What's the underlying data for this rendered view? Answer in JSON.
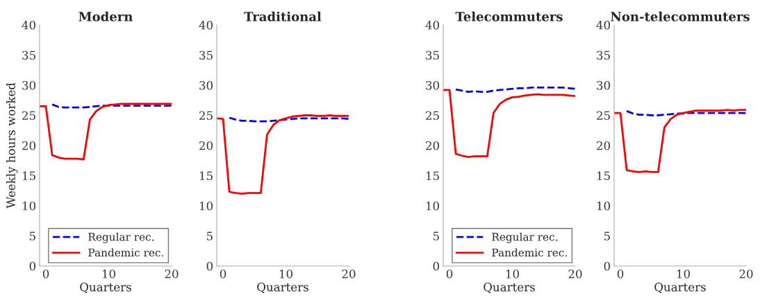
{
  "chart_data": [
    {
      "type": "line",
      "title": "Modern",
      "xlabel": "Quarters",
      "ylabel": "Weekly hours worked",
      "xlim": [
        -1,
        20
      ],
      "xticks": [
        0,
        10,
        20
      ],
      "ylim": [
        0,
        40
      ],
      "yticks": [
        0,
        5,
        10,
        15,
        20,
        25,
        30,
        35,
        40
      ],
      "legend": "bottom right",
      "grid": false,
      "series": [
        {
          "name": "Regular rec.",
          "color": "#0000ff",
          "line_style": "dashed",
          "x": [
            1,
            2,
            3,
            4,
            5,
            6,
            7,
            8,
            9,
            10,
            11,
            12,
            13,
            14,
            15,
            16,
            17,
            18,
            19,
            20
          ],
          "values": [
            26.8,
            26.4,
            26.3,
            26.3,
            26.3,
            26.3,
            26.4,
            26.5,
            26.6,
            26.6,
            26.6,
            26.6,
            26.6,
            26.6,
            26.6,
            26.6,
            26.6,
            26.6,
            26.6,
            26.6
          ]
        },
        {
          "name": "Pandemic rec.",
          "color": "#ff0000",
          "line_style": "solid",
          "x": [
            -1,
            0,
            1,
            2,
            3,
            4,
            5,
            6,
            7,
            8,
            9,
            10,
            11,
            12,
            13,
            14,
            15,
            16,
            17,
            18,
            19,
            20
          ],
          "values": [
            26.5,
            26.5,
            18.4,
            18.0,
            17.8,
            17.8,
            17.8,
            17.7,
            24.3,
            25.7,
            26.4,
            26.7,
            26.8,
            26.9,
            26.9,
            26.9,
            26.9,
            26.9,
            26.9,
            26.9,
            26.9,
            26.9
          ]
        }
      ]
    },
    {
      "type": "line",
      "title": "Traditional",
      "xlabel": "Quarters",
      "xlim": [
        -1,
        20
      ],
      "xticks": [
        0,
        10,
        20
      ],
      "ylim": [
        0,
        40
      ],
      "yticks": [
        0,
        5,
        10,
        15,
        20,
        25,
        30,
        35,
        40
      ],
      "legend": false,
      "grid": false,
      "series": [
        {
          "color": "#0000ff",
          "line_style": "dashed",
          "x": [
            1,
            2,
            3,
            4,
            5,
            6,
            7,
            8,
            9,
            10,
            11,
            12,
            13,
            14,
            15,
            16,
            17,
            18,
            19,
            20
          ],
          "values": [
            24.6,
            24.3,
            24.1,
            24.1,
            24.0,
            24.0,
            24.0,
            24.1,
            24.2,
            24.3,
            24.4,
            24.5,
            24.5,
            24.5,
            24.5,
            24.5,
            24.5,
            24.5,
            24.5,
            24.4
          ]
        },
        {
          "color": "#ff0000",
          "line_style": "solid",
          "x": [
            -1,
            0,
            1,
            2,
            3,
            4,
            5,
            6,
            7,
            8,
            9,
            10,
            11,
            12,
            13,
            14,
            15,
            16,
            17,
            18,
            19,
            20
          ],
          "values": [
            24.5,
            24.4,
            12.3,
            12.1,
            12.0,
            12.1,
            12.1,
            12.1,
            21.8,
            23.4,
            24.2,
            24.5,
            24.8,
            24.9,
            25.0,
            25.0,
            24.9,
            24.9,
            25.0,
            24.9,
            24.9,
            24.9
          ]
        }
      ]
    },
    {
      "type": "line",
      "title": "Telecommuters",
      "xlabel": "Quarters",
      "xlim": [
        -1,
        20
      ],
      "xticks": [
        0,
        10,
        20
      ],
      "ylim": [
        0,
        40
      ],
      "yticks": [
        0,
        5,
        10,
        15,
        20,
        25,
        30,
        35,
        40
      ],
      "legend": "bottom right",
      "grid": false,
      "series": [
        {
          "name": "Regular rec.",
          "color": "#0000ff",
          "line_style": "dashed",
          "x": [
            1,
            2,
            3,
            4,
            5,
            6,
            7,
            8,
            9,
            10,
            11,
            12,
            13,
            14,
            15,
            16,
            17,
            18,
            19,
            20
          ],
          "values": [
            29.3,
            29.1,
            28.9,
            29.0,
            28.9,
            28.9,
            29.1,
            29.2,
            29.3,
            29.4,
            29.5,
            29.5,
            29.6,
            29.6,
            29.6,
            29.6,
            29.6,
            29.6,
            29.5,
            29.4
          ]
        },
        {
          "name": "Pandemic rec.",
          "color": "#ff0000",
          "line_style": "solid",
          "x": [
            -1,
            0,
            1,
            2,
            3,
            4,
            5,
            6,
            7,
            8,
            9,
            10,
            11,
            12,
            13,
            14,
            15,
            16,
            17,
            18,
            19,
            20
          ],
          "values": [
            29.2,
            29.2,
            18.6,
            18.3,
            18.1,
            18.2,
            18.2,
            18.2,
            25.4,
            26.9,
            27.6,
            28.0,
            28.1,
            28.3,
            28.4,
            28.5,
            28.4,
            28.4,
            28.4,
            28.4,
            28.3,
            28.2
          ]
        }
      ]
    },
    {
      "type": "line",
      "title": "Non-telecommuters",
      "xlabel": "Quarters",
      "xlim": [
        -1,
        20
      ],
      "xticks": [
        0,
        10,
        20
      ],
      "ylim": [
        0,
        40
      ],
      "yticks": [
        0,
        5,
        10,
        15,
        20,
        25,
        30,
        35,
        40
      ],
      "legend": false,
      "grid": false,
      "series": [
        {
          "color": "#0000ff",
          "line_style": "dashed",
          "x": [
            1,
            2,
            3,
            4,
            5,
            6,
            7,
            8,
            9,
            10,
            11,
            12,
            13,
            14,
            15,
            16,
            17,
            18,
            19,
            20
          ],
          "values": [
            25.7,
            25.3,
            25.1,
            25.1,
            25.0,
            25.0,
            25.1,
            25.2,
            25.3,
            25.3,
            25.4,
            25.4,
            25.4,
            25.4,
            25.4,
            25.4,
            25.4,
            25.4,
            25.4,
            25.4
          ]
        },
        {
          "color": "#ff0000",
          "line_style": "solid",
          "x": [
            -1,
            0,
            1,
            2,
            3,
            4,
            5,
            6,
            7,
            8,
            9,
            10,
            11,
            12,
            13,
            14,
            15,
            16,
            17,
            18,
            19,
            20
          ],
          "values": [
            25.4,
            25.4,
            15.9,
            15.7,
            15.6,
            15.7,
            15.6,
            15.6,
            23.0,
            24.4,
            25.1,
            25.4,
            25.6,
            25.8,
            25.8,
            25.8,
            25.8,
            25.8,
            25.9,
            25.8,
            25.9,
            25.9
          ]
        }
      ]
    }
  ]
}
